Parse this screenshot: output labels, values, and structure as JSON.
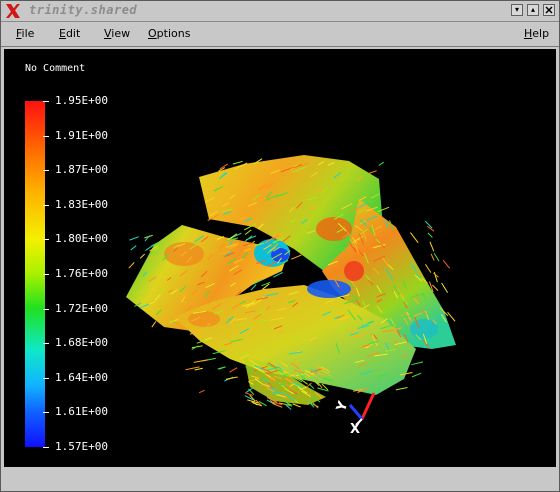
{
  "window": {
    "title": "trinity.shared",
    "minimize_glyph": "▾",
    "maximize_glyph": "▴"
  },
  "menubar": {
    "items": [
      {
        "label": "File",
        "mnemonic": "F"
      },
      {
        "label": "Edit",
        "mnemonic": "E"
      },
      {
        "label": "View",
        "mnemonic": "V"
      },
      {
        "label": "Options",
        "mnemonic": "O"
      }
    ],
    "help": {
      "label": "Help",
      "mnemonic": "H"
    }
  },
  "viewport": {
    "comment": "No Comment",
    "colorbar": {
      "labels": [
        "1.95E+00",
        "1.91E+00",
        "1.87E+00",
        "1.83E+00",
        "1.80E+00",
        "1.76E+00",
        "1.72E+00",
        "1.68E+00",
        "1.64E+00",
        "1.61E+00",
        "1.57E+00"
      ],
      "max_color": "#ff1010",
      "min_color": "#1010ff"
    },
    "axes": {
      "y": "Y",
      "x": "X"
    }
  },
  "colors": {
    "background": "#000000",
    "chrome": "#c8c8c8"
  }
}
